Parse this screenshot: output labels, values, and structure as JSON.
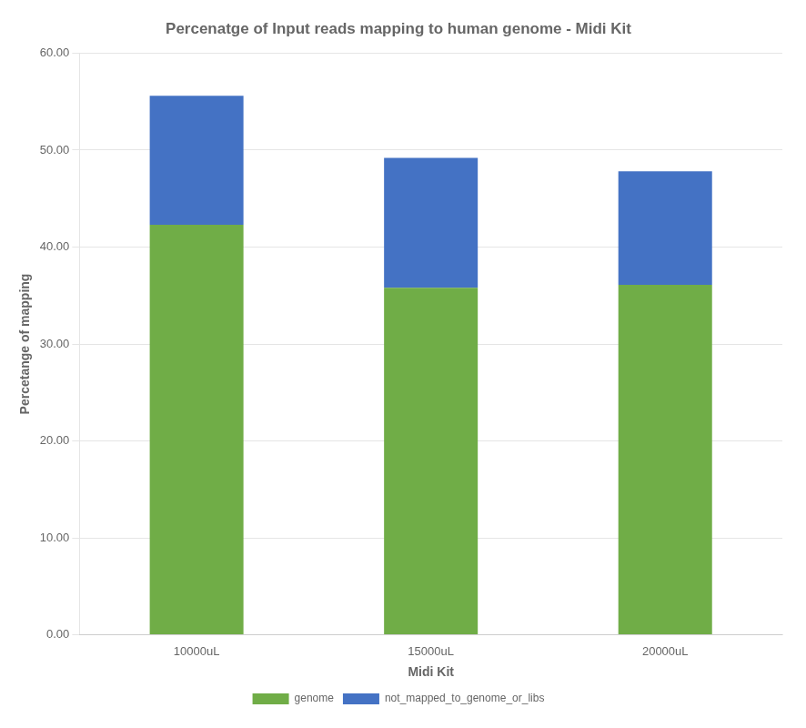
{
  "chart_data": {
    "type": "bar",
    "title": "Percenatge of Input reads mapping to human genome - Midi Kit",
    "xlabel": "Midi Kit",
    "ylabel": "Percetange of mapping",
    "categories": [
      "10000uL",
      "15000uL",
      "20000uL"
    ],
    "series": [
      {
        "name": "genome",
        "color": "#70AD47",
        "values": [
          42.3,
          35.8,
          36.1
        ]
      },
      {
        "name": "not_mapped_to_genome_or_libs",
        "color": "#4472C4",
        "values": [
          13.3,
          13.4,
          11.7
        ]
      }
    ],
    "stacked": true,
    "ylim": [
      0,
      60
    ],
    "yticks": [
      {
        "value": 0,
        "label": "0.00"
      },
      {
        "value": 10,
        "label": "10.00"
      },
      {
        "value": 20,
        "label": "20.00"
      },
      {
        "value": 30,
        "label": "30.00"
      },
      {
        "value": 40,
        "label": "40.00"
      },
      {
        "value": 50,
        "label": "50.00"
      },
      {
        "value": 60,
        "label": "60.00"
      }
    ],
    "grid": true,
    "legend": "bottom"
  }
}
